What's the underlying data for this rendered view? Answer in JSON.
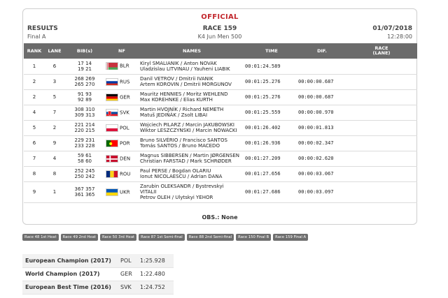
{
  "header": {
    "official": "OFFICIAL",
    "results": "RESULTS",
    "final": "Final A",
    "race": "RACE 159",
    "event": "K4 Jun Men 500",
    "date": "01/07/2018",
    "time": "12:28:00"
  },
  "columns": [
    "RANK",
    "LANE",
    "BIB(s)",
    "NF",
    "NAMES",
    "TIME",
    "DIF.",
    "RACE\n(LANE)"
  ],
  "rows": [
    {
      "rank": "1",
      "lane": "6",
      "bib1": "17 14",
      "bib2": "19 21",
      "nf": "BLR",
      "names1": "Kiryl SMALIANIK / Anton NOVAK",
      "names2": "Uladzislau LITVINAU / Yauheni LIABIK",
      "names3": "",
      "time": "00:01:24.589",
      "diff": ""
    },
    {
      "rank": "2",
      "lane": "3",
      "bib1": "268 269",
      "bib2": "265 270",
      "nf": "RUS",
      "names1": "Danil VETROV / Dmitrii IVANIK",
      "names2": "Artem KOROVIN / Dmitrii MORGUNOV",
      "names3": "",
      "time": "00:01:25.276",
      "diff": "00:00:00.687"
    },
    {
      "rank": "2",
      "lane": "5",
      "bib1": "91 93",
      "bib2": "92 89",
      "nf": "GER",
      "names1": "Mauritz HENNIES / Moritz WEHLEND",
      "names2": "Max KOREHNKE / Elias KURTH",
      "names3": "",
      "time": "00:01:25.276",
      "diff": "00:00:00.687"
    },
    {
      "rank": "4",
      "lane": "7",
      "bib1": "308 310",
      "bib2": "309 313",
      "nf": "SVK",
      "names1": "Martin HVOJNÍK / Richard NEMETH",
      "names2": "Matuš JEDINÁK / Zsolt LIBAI",
      "names3": "",
      "time": "00:01:25.559",
      "diff": "00:00:00.970"
    },
    {
      "rank": "5",
      "lane": "2",
      "bib1": "221 214",
      "bib2": "220 215",
      "nf": "POL",
      "names1": "Wojciech PILARZ / Marcin JAKUBOWSKI",
      "names2": "Wiktor LESZCZYNSKI / Marcin NOWACKI",
      "names3": "",
      "time": "00:01:26.402",
      "diff": "00:00:01.813"
    },
    {
      "rank": "6",
      "lane": "9",
      "bib1": "229 231",
      "bib2": "233 228",
      "nf": "POR",
      "names1": "Bruno SILVÉRIO / Francisco SANTOS",
      "names2": "Tomás SANTOS / Bruno MACEDO",
      "names3": "",
      "time": "00:01:26.936",
      "diff": "00:00:02.347"
    },
    {
      "rank": "7",
      "lane": "4",
      "bib1": "59 61",
      "bib2": "58 60",
      "nf": "DEN",
      "names1": "Magnus SIBBERSEN / Martin JØRGENSEN",
      "names2": "Christian FARSTAD / Mark SCHRØDER",
      "names3": "",
      "time": "00:01:27.209",
      "diff": "00:00:02.620"
    },
    {
      "rank": "8",
      "lane": "8",
      "bib1": "252 245",
      "bib2": "250 242",
      "nf": "ROU",
      "names1": "Paul PERSE / Bogdan OLARIU",
      "names2": "Ionut NICOLAESCU / Adrian DANA",
      "names3": "",
      "time": "00:01:27.656",
      "diff": "00:00:03.067"
    },
    {
      "rank": "9",
      "lane": "1",
      "bib1": "367 357",
      "bib2": "361 365",
      "nf": "UKR",
      "names1": "Zarubin OLEKSANDR / Bystrevskyi",
      "names2": "VITALII",
      "names3": "Petrov OLEH / Ulytskyi YEHOR",
      "time": "00:01:27.686",
      "diff": "00:00:03.097"
    }
  ],
  "obs": "OBS.: None",
  "races": [
    "Race 48 1st Heat",
    "Race 49 2nd Heat",
    "Race 50 3rd Heat",
    "Race 87 1st Semi-final",
    "Race 88 2nd Semi-final",
    "Race 150 Final B",
    "Race 159 Final A"
  ],
  "records": [
    {
      "name": "European Champion (2017)",
      "nf": "POL",
      "time": "1:25.928"
    },
    {
      "name": "World Champion (2017)",
      "nf": "GER",
      "time": "1:22.480"
    },
    {
      "name": "European Best Time (2016)",
      "nf": "SVK",
      "time": "1:24.752"
    }
  ]
}
